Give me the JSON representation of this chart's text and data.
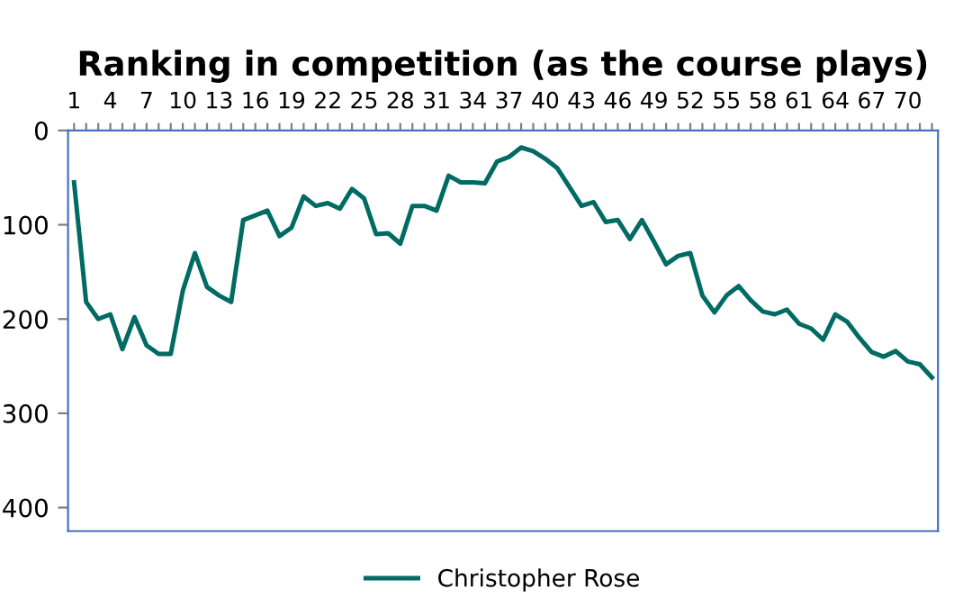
{
  "chart_data": {
    "type": "line",
    "title": "Ranking in competition (as the course plays)",
    "categories": [
      "1",
      null,
      null,
      "4",
      null,
      null,
      "7",
      null,
      null,
      "10",
      null,
      null,
      "13",
      null,
      null,
      "16",
      null,
      null,
      "19",
      null,
      null,
      "22",
      null,
      null,
      "25",
      null,
      null,
      "28",
      null,
      null,
      "31",
      null,
      null,
      "34",
      null,
      null,
      "37",
      null,
      null,
      "40",
      null,
      null,
      "43",
      null,
      null,
      "46",
      null,
      null,
      "49",
      null,
      null,
      "52",
      null,
      null,
      "55",
      null,
      null,
      "58",
      null,
      null,
      "61",
      null,
      null,
      "64",
      null,
      null,
      "67",
      null,
      null,
      "70",
      null,
      null
    ],
    "series": [
      {
        "name": "Christopher Rose",
        "color": "#006b63",
        "values": [
          55,
          182,
          200,
          195,
          232,
          198,
          228,
          237,
          237,
          170,
          130,
          166,
          175,
          182,
          95,
          90,
          85,
          112,
          103,
          70,
          80,
          77,
          83,
          62,
          72,
          110,
          109,
          120,
          80,
          80,
          85,
          48,
          55,
          55,
          56,
          33,
          28,
          18,
          22,
          30,
          40,
          60,
          80,
          76,
          97,
          95,
          115,
          95,
          118,
          142,
          133,
          130,
          175,
          193,
          175,
          165,
          180,
          192,
          195,
          190,
          205,
          210,
          222,
          195,
          203,
          220,
          235,
          240,
          234,
          245,
          248,
          262
        ]
      }
    ],
    "ylim": [
      425,
      0
    ],
    "yticks": [
      0,
      100,
      200,
      300,
      400
    ],
    "grid": false,
    "legend": "bottom",
    "marker": "none",
    "line_style": "solid"
  }
}
